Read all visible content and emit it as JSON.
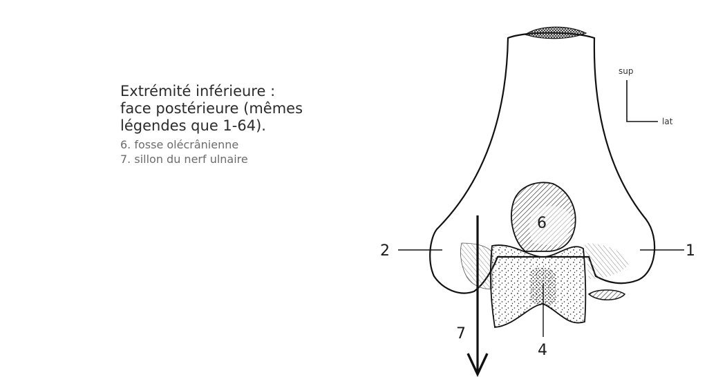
{
  "caption": {
    "title_lines": [
      "Extrémité inférieure :",
      "face postérieure (mêmes",
      "légendes que 1-64)."
    ],
    "items": [
      "6. fosse olécrânienne",
      "7. sillon du nerf ulnaire"
    ]
  },
  "orientation": {
    "up": "sup",
    "side": "lat"
  },
  "labels": {
    "l1": "1",
    "l2": "2",
    "l4": "4",
    "l6": "6",
    "l7": "7"
  }
}
